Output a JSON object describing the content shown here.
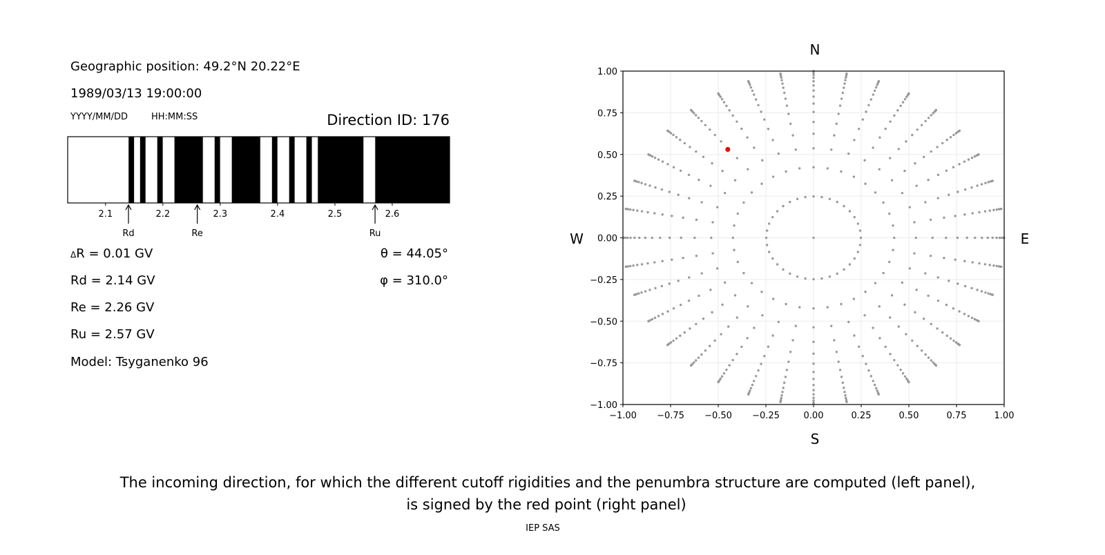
{
  "left_panel": {
    "geo_position": "Geographic position: 49.2°N 20.22°E",
    "datetime": "1989/03/13 19:00:00",
    "date_format": "YYYY/MM/DD",
    "time_format": "HH:MM:SS",
    "direction_id": "Direction ID: 176",
    "delta_r_symbol": "Δ",
    "delta_r": "R = 0.01 GV",
    "rd": "Rd = 2.14 GV",
    "re": "Re = 2.26 GV",
    "ru": "Ru = 2.57 GV",
    "model": "Model: Tsyganenko 96",
    "theta": "θ = 44.05°",
    "phi": "φ = 310.0°"
  },
  "chart_data": [
    {
      "type": "bar",
      "description_kind": "penumbra",
      "xlim": [
        2.034,
        2.7
      ],
      "xticks": [
        "2.1",
        "2.2",
        "2.3",
        "2.4",
        "2.5",
        "2.6"
      ],
      "allowed_intervals": [
        [
          2.034,
          2.14
        ],
        [
          2.15,
          2.16
        ],
        [
          2.17,
          2.19
        ],
        [
          2.2,
          2.22
        ],
        [
          2.27,
          2.29
        ],
        [
          2.3,
          2.32
        ],
        [
          2.37,
          2.39
        ],
        [
          2.4,
          2.42
        ],
        [
          2.43,
          2.45
        ],
        [
          2.46,
          2.47
        ],
        [
          2.55,
          2.57
        ]
      ],
      "colors": {
        "allowed": "#ffffff",
        "forbidden": "#000000"
      },
      "markers": [
        {
          "label": "Rd",
          "value": 2.14
        },
        {
          "label": "Re",
          "value": 2.26
        },
        {
          "label": "Ru",
          "value": 2.57
        }
      ]
    },
    {
      "type": "scatter",
      "xlim": [
        -1.0,
        1.0
      ],
      "ylim": [
        -1.0,
        1.0
      ],
      "xticks": [
        "−1.00",
        "−0.75",
        "−0.50",
        "−0.25",
        "0.00",
        "0.25",
        "0.50",
        "0.75",
        "1.00"
      ],
      "yticks": [
        "1.00",
        "0.75",
        "0.50",
        "0.25",
        "0.00",
        "−0.25",
        "−0.50",
        "−0.75",
        "−1.00"
      ],
      "grid": true,
      "directions": {
        "N": "N",
        "S": "S",
        "W": "W",
        "E": "E"
      },
      "center_point": [
        0,
        0
      ],
      "ring_radii": [
        0.248,
        0.423,
        0.537,
        0.624,
        0.695,
        0.755,
        0.805,
        0.847,
        0.883,
        0.914,
        0.939,
        0.96,
        0.976,
        0.988,
        0.996,
        1.0
      ],
      "azimuth_step_deg": 10,
      "point_color": "#999999",
      "highlight": {
        "x": -0.45,
        "y": 0.53,
        "color": "#ff0000"
      }
    }
  ],
  "caption": {
    "line1": "The incoming direction, for which the different cutoff rigidities and the penumbra structure are computed (left panel),",
    "line2": "is signed by the red point (right panel)"
  },
  "credit": "IEP SAS"
}
